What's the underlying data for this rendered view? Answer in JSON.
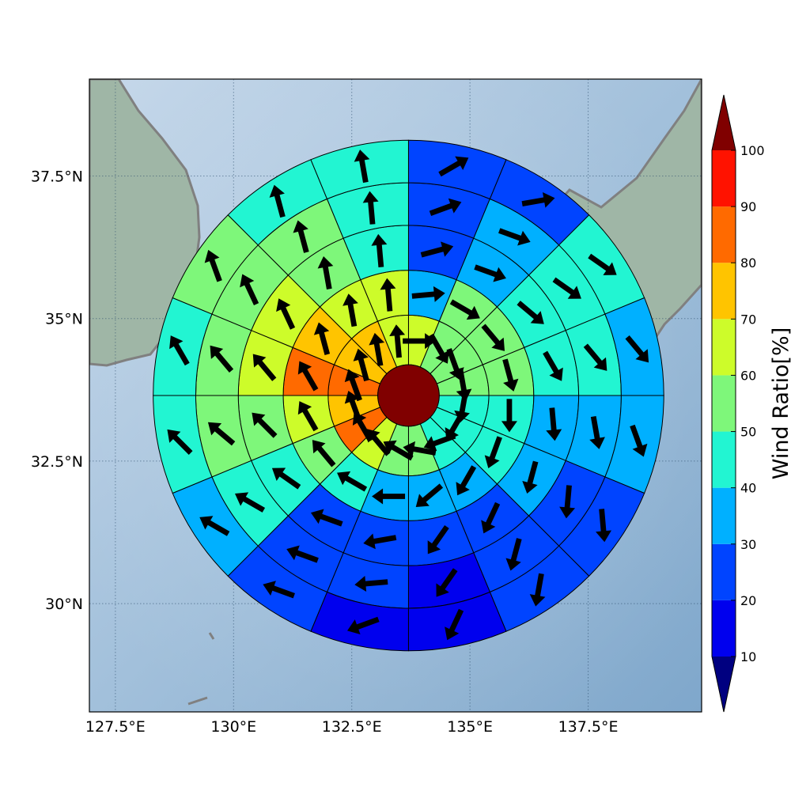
{
  "chart_data": {
    "type": "polar-sector-map",
    "projection": "equirectangular",
    "xlim": [
      126.95,
      139.9
    ],
    "ylim": [
      28.1,
      39.2
    ],
    "x_ticks": [
      {
        "value": 127.5,
        "label": "127.5°E"
      },
      {
        "value": 130.0,
        "label": "130°E"
      },
      {
        "value": 132.5,
        "label": "132.5°E"
      },
      {
        "value": 135.0,
        "label": "135°E"
      },
      {
        "value": 137.5,
        "label": "137.5°E"
      }
    ],
    "y_ticks": [
      {
        "value": 37.5,
        "label": "37.5°N"
      },
      {
        "value": 35.0,
        "label": "35°N"
      },
      {
        "value": 32.5,
        "label": "32.5°N"
      },
      {
        "value": 30.0,
        "label": "30°N"
      }
    ],
    "grid": true,
    "center": {
      "lon": 133.7,
      "lat": 33.65,
      "value": 100
    },
    "ring_edges_deg": [
      0.65,
      1.7,
      2.65,
      3.6,
      4.5,
      5.4
    ],
    "sector_count": 16,
    "sector_order": "clockwise from north",
    "rings": [
      {
        "values": [
          65,
          55,
          55,
          50,
          45,
          40,
          45,
          50,
          55,
          65,
          80,
          75,
          85,
          75,
          70,
          65
        ],
        "wind_dir_deg": [
          90,
          150,
          160,
          170,
          190,
          210,
          250,
          280,
          300,
          320,
          330,
          340,
          340,
          345,
          350,
          355
        ]
      },
      {
        "values": [
          30,
          50,
          55,
          55,
          45,
          40,
          30,
          30,
          30,
          45,
          55,
          65,
          85,
          70,
          65,
          60
        ],
        "wind_dir_deg": [
          85,
          120,
          140,
          165,
          180,
          200,
          210,
          230,
          270,
          300,
          320,
          330,
          330,
          345,
          350,
          355
        ]
      },
      {
        "values": [
          20,
          35,
          40,
          40,
          35,
          30,
          20,
          20,
          20,
          20,
          45,
          55,
          65,
          65,
          55,
          45
        ],
        "wind_dir_deg": [
          75,
          110,
          130,
          150,
          175,
          195,
          205,
          215,
          260,
          290,
          305,
          315,
          320,
          335,
          350,
          355
        ]
      },
      {
        "values": [
          20,
          30,
          45,
          40,
          30,
          25,
          20,
          15,
          20,
          20,
          45,
          50,
          55,
          50,
          50,
          45
        ],
        "wind_dir_deg": [
          70,
          110,
          125,
          140,
          170,
          185,
          195,
          215,
          265,
          290,
          300,
          310,
          320,
          335,
          345,
          355
        ]
      },
      {
        "values": [
          20,
          20,
          40,
          35,
          30,
          25,
          20,
          15,
          15,
          25,
          35,
          45,
          45,
          50,
          45,
          45
        ],
        "wind_dir_deg": [
          60,
          80,
          125,
          140,
          160,
          175,
          190,
          205,
          250,
          290,
          300,
          315,
          330,
          340,
          345,
          350
        ]
      }
    ],
    "colorbar": {
      "label": "Wind Ratio[%]",
      "ticks": [
        10,
        20,
        30,
        40,
        50,
        60,
        70,
        80,
        90,
        100
      ],
      "bins": [
        {
          "min": 10,
          "max": 20,
          "color": "#0000ee"
        },
        {
          "min": 20,
          "max": 30,
          "color": "#0044ff"
        },
        {
          "min": 30,
          "max": 40,
          "color": "#00b0ff"
        },
        {
          "min": 40,
          "max": 50,
          "color": "#22f5d2"
        },
        {
          "min": 50,
          "max": 60,
          "color": "#7ef77a"
        },
        {
          "min": 60,
          "max": 70,
          "color": "#cdfc2a"
        },
        {
          "min": 70,
          "max": 80,
          "color": "#ffc400"
        },
        {
          "min": 80,
          "max": 90,
          "color": "#ff6a00"
        },
        {
          "min": 90,
          "max": 100,
          "color": "#ff1200"
        }
      ],
      "under_color": "#000080",
      "over_color": "#800000",
      "extend": "both"
    },
    "colors": {
      "ocean": "#a9c4dd",
      "land": "#9fb6a6",
      "coastline": "#808080",
      "sector_edge": "#000000",
      "arrow": "#000000"
    }
  }
}
